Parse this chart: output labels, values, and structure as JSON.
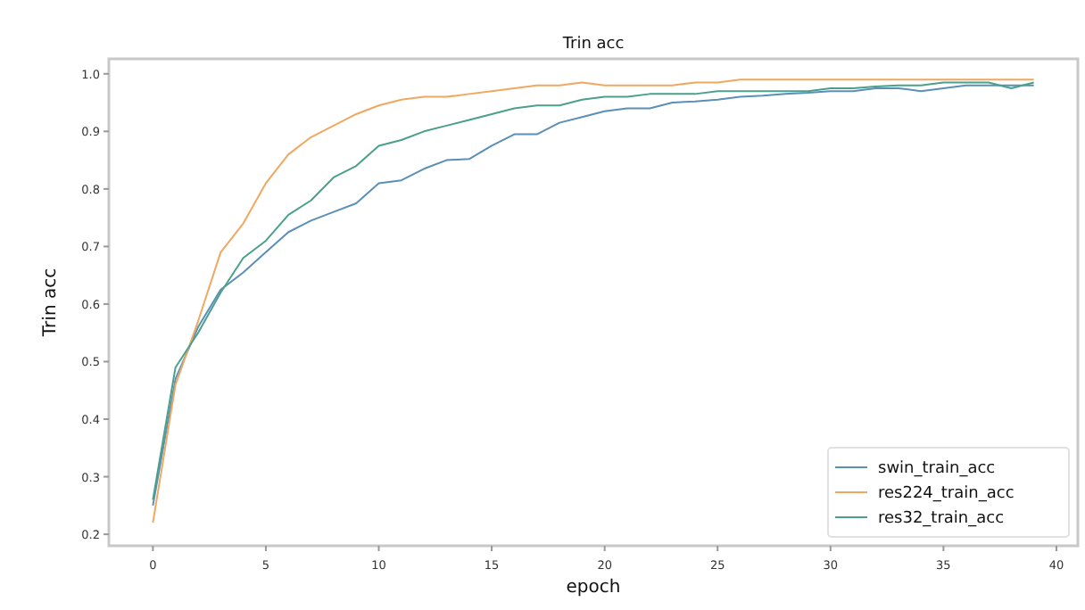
{
  "chart_data": {
    "type": "line",
    "title": "Trin acc",
    "xlabel": "epoch",
    "ylabel": "Trin acc",
    "x": [
      0,
      1,
      2,
      3,
      4,
      5,
      6,
      7,
      8,
      9,
      10,
      11,
      12,
      13,
      14,
      15,
      16,
      17,
      18,
      19,
      20,
      21,
      22,
      23,
      24,
      25,
      26,
      27,
      28,
      29,
      30,
      31,
      32,
      33,
      34,
      35,
      36,
      37,
      38,
      39
    ],
    "xlim": [
      -1.95,
      40.95
    ],
    "xticks": [
      0,
      5,
      10,
      15,
      20,
      25,
      30,
      35,
      40
    ],
    "ylim": [
      0.18,
      1.026
    ],
    "yticks": [
      {
        "value": 0.2,
        "label": "0.2"
      },
      {
        "value": 0.3,
        "label": "0.3"
      },
      {
        "value": 0.4,
        "label": "0.4"
      },
      {
        "value": 0.5,
        "label": "0.5"
      },
      {
        "value": 0.6,
        "label": "0.6"
      },
      {
        "value": 0.7,
        "label": "0.7"
      },
      {
        "value": 0.8,
        "label": "0.8"
      },
      {
        "value": 0.9,
        "label": "0.9"
      },
      {
        "value": 1.0,
        "label": "1.0"
      }
    ],
    "grid": false,
    "legend": "bottom right",
    "line_style": "solid",
    "marker": "none",
    "series": [
      {
        "name": "swin_train_acc",
        "color": "#5a8fb8",
        "values": [
          0.25,
          0.47,
          0.56,
          0.625,
          0.655,
          0.69,
          0.725,
          0.745,
          0.76,
          0.775,
          0.81,
          0.815,
          0.835,
          0.85,
          0.852,
          0.875,
          0.895,
          0.895,
          0.915,
          0.925,
          0.935,
          0.94,
          0.94,
          0.95,
          0.952,
          0.955,
          0.96,
          0.962,
          0.965,
          0.967,
          0.97,
          0.97,
          0.975,
          0.975,
          0.97,
          0.975,
          0.98,
          0.98,
          0.98,
          0.98
        ]
      },
      {
        "name": "res224_train_acc",
        "color": "#f0a860",
        "values": [
          0.22,
          0.46,
          0.57,
          0.69,
          0.74,
          0.81,
          0.86,
          0.89,
          0.91,
          0.93,
          0.945,
          0.955,
          0.96,
          0.96,
          0.965,
          0.97,
          0.975,
          0.98,
          0.98,
          0.985,
          0.98,
          0.98,
          0.98,
          0.98,
          0.985,
          0.985,
          0.99,
          0.99,
          0.99,
          0.99,
          0.99,
          0.99,
          0.99,
          0.99,
          0.99,
          0.99,
          0.99,
          0.99,
          0.99,
          0.99
        ]
      },
      {
        "name": "res32_train_acc",
        "color": "#4aa08a",
        "values": [
          0.26,
          0.49,
          0.55,
          0.62,
          0.68,
          0.71,
          0.755,
          0.78,
          0.82,
          0.84,
          0.875,
          0.885,
          0.9,
          0.91,
          0.92,
          0.93,
          0.94,
          0.945,
          0.945,
          0.955,
          0.96,
          0.96,
          0.965,
          0.965,
          0.965,
          0.97,
          0.97,
          0.97,
          0.97,
          0.97,
          0.975,
          0.975,
          0.978,
          0.98,
          0.98,
          0.985,
          0.985,
          0.985,
          0.975,
          0.985
        ]
      }
    ]
  }
}
